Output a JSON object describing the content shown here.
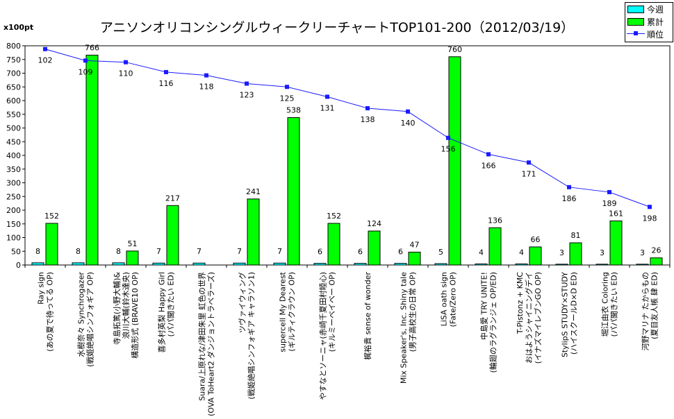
{
  "chart_data": {
    "type": "bar",
    "title": "アニソンオリコンシングルウィークリーチャートTOP101-200（2012/03/19）",
    "unit_label": "x100pt",
    "ylim": [
      0,
      800
    ],
    "ytick_step": 50,
    "grid": false,
    "legend_position": "top-right",
    "categories": [
      [
        "Ray sign",
        "(あの夏で待ってる OP)"
      ],
      [
        "水樹奈々  Synchrogazer",
        "(戦姫絶唱シンフォギア OP)"
      ],
      [
        "寺島拓篤(小野大輔)&",
        "浪川大輔(鈴木達央)",
        "構造形式 (BRAVE10 OP)"
      ],
      [
        "喜多村英梨  Happy Girl",
        "(パパ聞きたい ED)"
      ],
      [
        "Suara/上原れな/津田朱里 虹色の世界",
        "(OVA ToHeart2 ダンジョントラベラーズ)"
      ],
      [
        "ツヴァイウィング",
        "(戦姫絶唱シンフォギア キャラソン1)"
      ],
      [
        "supercell  My Dearest",
        "(ギルティクラウン OP)"
      ],
      [
        "やすなとソーニャ(赤崎千夏田村睦心)",
        "(キルミーベイベー OP)"
      ],
      [
        "梶裕貴  sense of wonder"
      ],
      [
        "Mix Speaker's, Inc. Shiny tale",
        "(男子高校生の日常 OP)"
      ],
      [
        "LiSA  oath sign",
        "(Fate/Zero OP)"
      ],
      [
        "中島愛  TRY UNITE!",
        "(輪廻のラグランジェ OP/ED)"
      ],
      [
        "T-Pistonz + KMC",
        "おはようシャイニングデイ",
        "(イナズマイレブンGO OP)"
      ],
      [
        "StylipS  STUDY×STUDY",
        "(ハイスクールD×D ED)"
      ],
      [
        "堀江由衣  Coloring",
        "(パパ聞きたい ED)"
      ],
      [
        "河野マリナ  たからもの",
        "(夏目友人帳 肆 ED)"
      ]
    ],
    "series": [
      {
        "name": "今週",
        "color": "#00ffff",
        "values": [
          8,
          8,
          8,
          7,
          7,
          7,
          7,
          6,
          6,
          6,
          5,
          4,
          4,
          3,
          3,
          3
        ]
      },
      {
        "name": "累計",
        "color": "#00ff00",
        "values": [
          152,
          766,
          51,
          217,
          null,
          241,
          538,
          152,
          124,
          47,
          760,
          136,
          66,
          81,
          161,
          26
        ]
      },
      {
        "name": "順位",
        "color": "#1a1aff",
        "type": "line",
        "values": [
          102,
          109,
          110,
          116,
          118,
          123,
          125,
          131,
          138,
          140,
          156,
          166,
          171,
          186,
          189,
          198
        ]
      }
    ]
  }
}
